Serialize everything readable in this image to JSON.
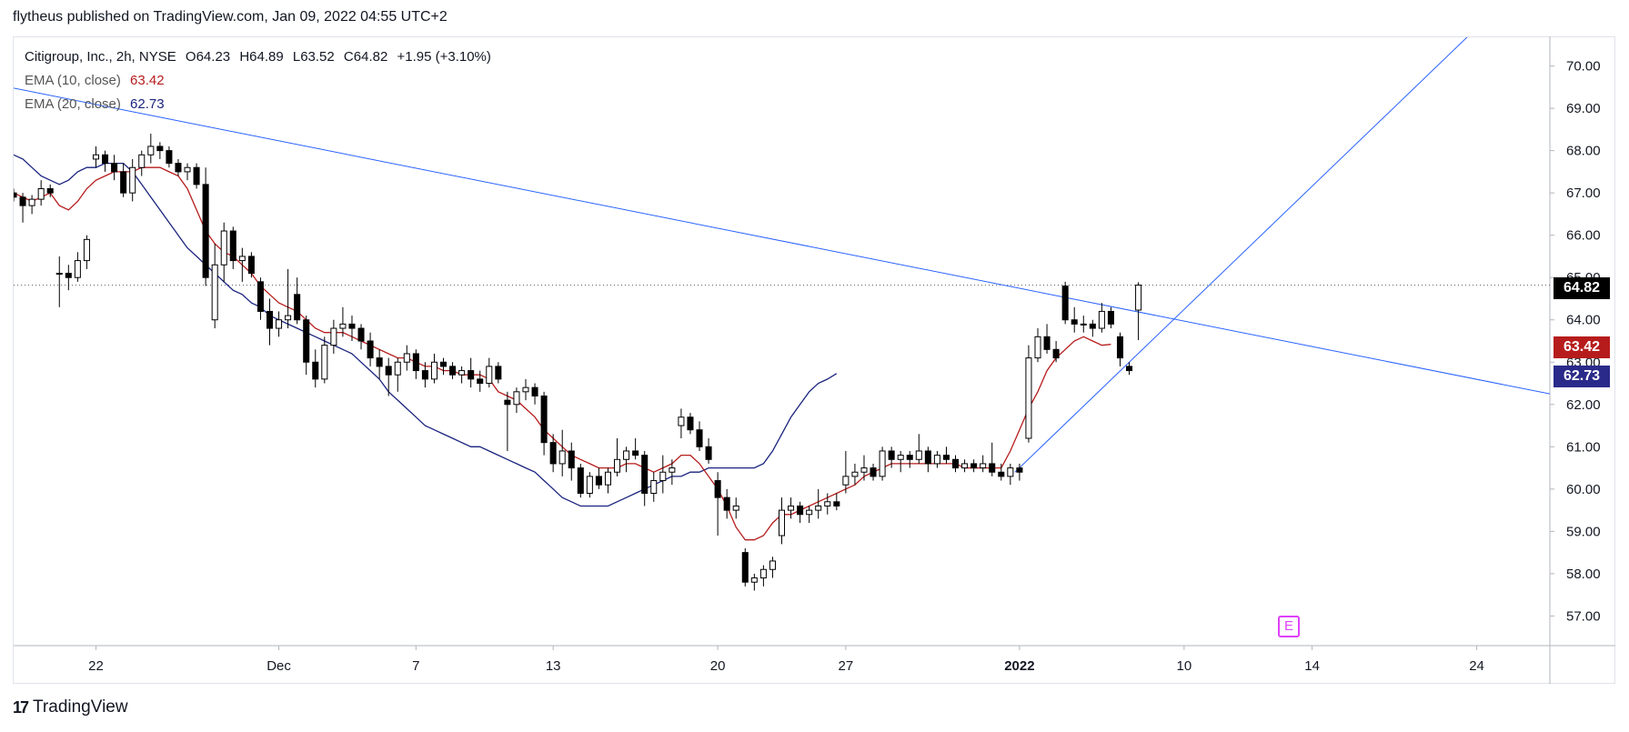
{
  "header": {
    "published_text": "flytheus published on TradingView.com, Jan 09, 2022 04:55 UTC+2"
  },
  "legend": {
    "symbol": "Citigroup, Inc., 2h, NYSE",
    "ohlc": {
      "open": "O64.23",
      "high": "H64.89",
      "low": "L63.52",
      "close": "C64.82",
      "change": "+1.95 (+3.10%)"
    },
    "ema10": {
      "label": "EMA (10, close)",
      "value": "63.42",
      "color": "#b71c1c"
    },
    "ema20": {
      "label": "EMA (20, close)",
      "value": "62.73",
      "color": "#1a237e"
    }
  },
  "price_tags": {
    "last": {
      "value": "64.82",
      "color": "#000000"
    },
    "ema10": {
      "value": "63.42",
      "color": "#b71c1c"
    },
    "ema20": {
      "value": "62.73",
      "color": "#2a2a8a"
    }
  },
  "earnings_marker": "E",
  "footer": {
    "logo": "17",
    "brand": "TradingView"
  },
  "chart_data": {
    "type": "candlestick",
    "title": "Citigroup, Inc., 2h, NYSE",
    "y_ticks": [
      "70.00",
      "69.00",
      "68.00",
      "67.00",
      "66.00",
      "65.00",
      "64.00",
      "63.00",
      "62.00",
      "61.00",
      "60.00",
      "59.00",
      "58.00",
      "57.00"
    ],
    "ylim": [
      56.3,
      70.7
    ],
    "x_ticks": [
      {
        "label": "22",
        "bar": 9
      },
      {
        "label": "Dec",
        "bar": 29
      },
      {
        "label": "7",
        "bar": 44
      },
      {
        "label": "13",
        "bar": 59
      },
      {
        "label": "20",
        "bar": 77
      },
      {
        "label": "27",
        "bar": 91
      },
      {
        "label": "2022",
        "bar": 110
      },
      {
        "label": "10",
        "bar": 128
      },
      {
        "label": "14",
        "bar": 142
      },
      {
        "label": "24",
        "bar": 160
      }
    ],
    "xlim": [
      0,
      168
    ],
    "candles": [
      [
        67.0,
        67.1,
        66.8,
        66.9
      ],
      [
        66.9,
        67.0,
        66.3,
        66.7
      ],
      [
        66.7,
        66.95,
        66.5,
        66.85
      ],
      [
        66.85,
        67.3,
        66.7,
        67.1
      ],
      [
        67.1,
        67.2,
        66.9,
        67.0
      ],
      [
        65.1,
        65.5,
        64.3,
        65.1
      ],
      [
        65.1,
        65.3,
        64.7,
        65.0
      ],
      [
        65.0,
        65.6,
        64.9,
        65.4
      ],
      [
        65.4,
        66.0,
        65.2,
        65.9
      ],
      [
        67.8,
        68.1,
        67.6,
        67.9
      ],
      [
        67.9,
        68.0,
        67.5,
        67.7
      ],
      [
        67.7,
        67.9,
        67.3,
        67.5
      ],
      [
        67.5,
        67.7,
        66.9,
        67.0
      ],
      [
        67.0,
        67.8,
        66.8,
        67.6
      ],
      [
        67.6,
        68.0,
        67.4,
        67.9
      ],
      [
        67.9,
        68.4,
        67.7,
        68.1
      ],
      [
        68.1,
        68.2,
        67.8,
        68.0
      ],
      [
        68.0,
        68.1,
        67.6,
        67.7
      ],
      [
        67.7,
        67.8,
        67.4,
        67.5
      ],
      [
        67.5,
        67.7,
        67.3,
        67.6
      ],
      [
        67.6,
        67.7,
        67.1,
        67.2
      ],
      [
        67.2,
        67.6,
        64.8,
        65.0
      ],
      [
        64.0,
        65.8,
        63.8,
        65.3
      ],
      [
        65.3,
        66.3,
        64.9,
        66.1
      ],
      [
        66.1,
        66.2,
        65.2,
        65.4
      ],
      [
        65.4,
        65.7,
        64.9,
        65.5
      ],
      [
        65.5,
        65.6,
        65.0,
        65.1
      ],
      [
        64.9,
        65.0,
        64.0,
        64.2
      ],
      [
        64.2,
        64.5,
        63.4,
        63.8
      ],
      [
        63.8,
        64.2,
        63.6,
        64.0
      ],
      [
        64.0,
        65.2,
        63.8,
        64.1
      ],
      [
        64.6,
        65.0,
        63.9,
        64.0
      ],
      [
        64.0,
        64.1,
        62.7,
        63.0
      ],
      [
        63.0,
        63.3,
        62.4,
        62.6
      ],
      [
        62.6,
        63.6,
        62.5,
        63.4
      ],
      [
        63.4,
        64.0,
        63.2,
        63.8
      ],
      [
        63.8,
        64.3,
        63.6,
        63.9
      ],
      [
        63.9,
        64.1,
        63.5,
        63.8
      ],
      [
        63.8,
        63.9,
        63.3,
        63.5
      ],
      [
        63.5,
        63.7,
        62.9,
        63.1
      ],
      [
        63.1,
        63.3,
        62.6,
        62.9
      ],
      [
        62.9,
        63.1,
        62.2,
        62.7
      ],
      [
        62.7,
        63.1,
        62.3,
        63.0
      ],
      [
        63.0,
        63.4,
        62.8,
        63.2
      ],
      [
        63.2,
        63.3,
        62.6,
        62.8
      ],
      [
        62.8,
        63.0,
        62.4,
        62.6
      ],
      [
        62.6,
        63.2,
        62.5,
        63.0
      ],
      [
        63.0,
        63.1,
        62.7,
        62.9
      ],
      [
        62.9,
        63.0,
        62.6,
        62.7
      ],
      [
        62.7,
        62.9,
        62.5,
        62.8
      ],
      [
        62.8,
        63.1,
        62.4,
        62.6
      ],
      [
        62.6,
        62.8,
        62.3,
        62.5
      ],
      [
        62.5,
        63.1,
        62.4,
        62.9
      ],
      [
        62.9,
        63.0,
        62.5,
        62.6
      ],
      [
        62.1,
        62.3,
        60.9,
        62.0
      ],
      [
        62.0,
        62.4,
        61.8,
        62.3
      ],
      [
        62.3,
        62.6,
        62.1,
        62.4
      ],
      [
        62.4,
        62.5,
        62.0,
        62.2
      ],
      [
        62.2,
        62.3,
        60.8,
        61.1
      ],
      [
        61.1,
        61.3,
        60.4,
        60.6
      ],
      [
        60.6,
        61.4,
        60.3,
        60.9
      ],
      [
        60.9,
        61.1,
        60.2,
        60.5
      ],
      [
        60.5,
        60.6,
        59.8,
        59.9
      ],
      [
        59.9,
        60.4,
        59.8,
        60.3
      ],
      [
        60.3,
        60.5,
        60.0,
        60.1
      ],
      [
        60.1,
        60.5,
        59.9,
        60.4
      ],
      [
        60.4,
        61.2,
        60.3,
        60.7
      ],
      [
        60.7,
        61.0,
        60.4,
        60.9
      ],
      [
        60.9,
        61.2,
        60.7,
        60.8
      ],
      [
        60.8,
        60.9,
        59.6,
        59.9
      ],
      [
        59.9,
        60.4,
        59.7,
        60.2
      ],
      [
        60.2,
        60.8,
        59.9,
        60.4
      ],
      [
        60.4,
        60.7,
        60.1,
        60.5
      ],
      [
        61.5,
        61.9,
        61.2,
        61.7
      ],
      [
        61.7,
        61.8,
        61.3,
        61.4
      ],
      [
        61.4,
        61.6,
        60.9,
        61.0
      ],
      [
        61.0,
        61.2,
        60.6,
        60.7
      ],
      [
        60.2,
        60.4,
        58.9,
        59.8
      ],
      [
        59.8,
        60.0,
        59.3,
        59.5
      ],
      [
        59.5,
        59.8,
        59.3,
        59.6
      ],
      [
        58.5,
        58.6,
        57.7,
        57.8
      ],
      [
        57.8,
        58.0,
        57.6,
        57.9
      ],
      [
        57.9,
        58.2,
        57.7,
        58.1
      ],
      [
        58.1,
        58.4,
        57.9,
        58.3
      ],
      [
        58.9,
        59.8,
        58.7,
        59.5
      ],
      [
        59.5,
        59.8,
        59.3,
        59.6
      ],
      [
        59.6,
        59.7,
        59.2,
        59.4
      ],
      [
        59.4,
        59.6,
        59.2,
        59.5
      ],
      [
        59.5,
        60.0,
        59.3,
        59.6
      ],
      [
        59.6,
        59.9,
        59.4,
        59.7
      ],
      [
        59.7,
        59.9,
        59.5,
        59.6
      ],
      [
        60.1,
        60.9,
        59.9,
        60.3
      ],
      [
        60.3,
        60.6,
        60.1,
        60.4
      ],
      [
        60.4,
        60.8,
        60.2,
        60.5
      ],
      [
        60.5,
        60.6,
        60.2,
        60.3
      ],
      [
        60.3,
        61.0,
        60.2,
        60.9
      ],
      [
        60.9,
        61.0,
        60.5,
        60.7
      ],
      [
        60.7,
        60.9,
        60.4,
        60.8
      ],
      [
        60.8,
        60.9,
        60.5,
        60.7
      ],
      [
        60.7,
        61.3,
        60.6,
        60.9
      ],
      [
        60.9,
        61.0,
        60.4,
        60.6
      ],
      [
        60.6,
        60.9,
        60.5,
        60.8
      ],
      [
        60.8,
        61.0,
        60.6,
        60.7
      ],
      [
        60.7,
        60.8,
        60.4,
        60.5
      ],
      [
        60.5,
        60.7,
        60.4,
        60.6
      ],
      [
        60.6,
        60.7,
        60.4,
        60.5
      ],
      [
        60.5,
        60.8,
        60.4,
        60.6
      ],
      [
        60.6,
        61.1,
        60.3,
        60.4
      ],
      [
        60.4,
        60.6,
        60.2,
        60.3
      ],
      [
        60.3,
        60.6,
        60.1,
        60.5
      ],
      [
        60.5,
        60.6,
        60.2,
        60.4
      ],
      [
        61.2,
        63.4,
        61.1,
        63.1
      ],
      [
        63.1,
        63.8,
        63.0,
        63.6
      ],
      [
        63.6,
        63.9,
        63.2,
        63.3
      ],
      [
        63.3,
        63.5,
        63.0,
        63.1
      ],
      [
        64.8,
        64.9,
        63.9,
        64.0
      ],
      [
        64.0,
        64.3,
        63.7,
        63.9
      ],
      [
        63.9,
        64.1,
        63.7,
        63.9
      ],
      [
        63.9,
        64.0,
        63.6,
        63.8
      ],
      [
        63.8,
        64.4,
        63.7,
        64.2
      ],
      [
        64.2,
        64.3,
        63.8,
        63.9
      ],
      [
        63.6,
        63.7,
        62.9,
        63.1
      ],
      [
        62.9,
        63.0,
        62.7,
        62.8
      ],
      [
        64.23,
        64.89,
        63.52,
        64.82
      ]
    ],
    "ema10": [
      67.0,
      66.9,
      66.8,
      66.9,
      67.0,
      66.7,
      66.6,
      66.8,
      67.1,
      67.3,
      67.4,
      67.5,
      67.5,
      67.5,
      67.6,
      67.6,
      67.6,
      67.5,
      67.4,
      67.1,
      66.6,
      66.1,
      65.8,
      65.6,
      65.5,
      65.3,
      65.1,
      64.8,
      64.6,
      64.4,
      64.3,
      64.2,
      64.0,
      63.8,
      63.7,
      63.7,
      63.7,
      63.6,
      63.5,
      63.4,
      63.3,
      63.2,
      63.1,
      63.1,
      63.0,
      62.9,
      62.9,
      62.8,
      62.8,
      62.7,
      62.7,
      62.7,
      62.6,
      62.3,
      62.2,
      62.1,
      61.9,
      61.7,
      61.4,
      61.2,
      61.0,
      60.8,
      60.7,
      60.6,
      60.5,
      60.5,
      60.5,
      60.6,
      60.6,
      60.5,
      60.4,
      60.5,
      60.6,
      60.8,
      60.8,
      60.6,
      60.3,
      60.0,
      59.6,
      59.1,
      58.8,
      58.8,
      58.9,
      59.2,
      59.4,
      59.4,
      59.5,
      59.6,
      59.7,
      59.8,
      59.9,
      60.0,
      60.1,
      60.3,
      60.4,
      60.5,
      60.6,
      60.6,
      60.6,
      60.6,
      60.6,
      60.6,
      60.6,
      60.6,
      60.5,
      60.5,
      60.5,
      60.5,
      60.5,
      60.9,
      61.4,
      61.9,
      62.3,
      62.8,
      63.1,
      63.3,
      63.5,
      63.6,
      63.5,
      63.4,
      63.42
    ],
    "ema20": [
      67.9,
      67.8,
      67.6,
      67.4,
      67.3,
      67.2,
      67.3,
      67.5,
      67.6,
      67.6,
      67.7,
      67.7,
      67.7,
      67.5,
      67.2,
      66.9,
      66.6,
      66.3,
      66.0,
      65.7,
      65.5,
      65.3,
      65.1,
      64.9,
      64.7,
      64.6,
      64.4,
      64.3,
      64.1,
      64.0,
      63.9,
      63.8,
      63.7,
      63.6,
      63.5,
      63.4,
      63.3,
      63.2,
      63.0,
      62.8,
      62.6,
      62.3,
      62.1,
      61.9,
      61.7,
      61.5,
      61.4,
      61.3,
      61.2,
      61.1,
      61.0,
      61.0,
      60.9,
      60.8,
      60.7,
      60.6,
      60.5,
      60.4,
      60.2,
      60.0,
      59.8,
      59.7,
      59.6,
      59.6,
      59.6,
      59.6,
      59.7,
      59.8,
      59.9,
      60.0,
      60.1,
      60.2,
      60.3,
      60.3,
      60.4,
      60.4,
      60.5,
      60.5,
      60.5,
      60.5,
      60.5,
      60.5,
      60.6,
      60.9,
      61.3,
      61.7,
      62.0,
      62.3,
      62.5,
      62.6,
      62.73
    ],
    "trendlines": [
      {
        "from": [
          -0.5,
          69.5
        ],
        "to": [
          168,
          62.25
        ],
        "color": "#2962ff"
      },
      {
        "from": [
          109.5,
          60.4
        ],
        "to": [
          160,
          70.9
        ],
        "color": "#2962ff"
      }
    ],
    "last_price": 64.82
  }
}
